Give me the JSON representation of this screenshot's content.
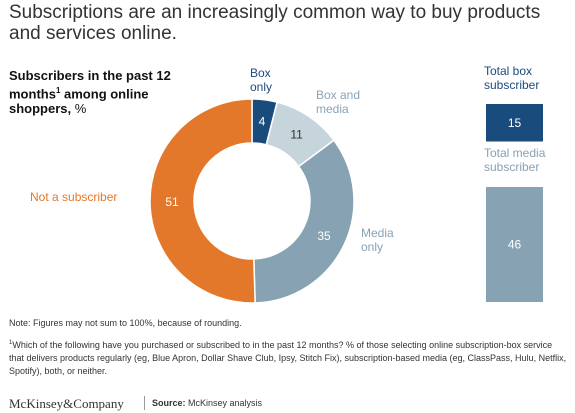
{
  "title": "Subscriptions are an increasingly common way to buy products and services online.",
  "subtitle": {
    "main": "Subscribers in the past 12 months",
    "sup": "1",
    "rest": " among online shoppers,",
    "unit": " %"
  },
  "chart_data": [
    {
      "type": "pie",
      "variant": "donut",
      "slices": [
        {
          "label_lines": [
            "Box",
            "only"
          ],
          "value": 4,
          "color": "#1a4b7d",
          "label_color": "#1a4b7d"
        },
        {
          "label_lines": [
            "Box and",
            "media"
          ],
          "value": 11,
          "color": "#c6d4dc",
          "label_color": "#8aa3b5"
        },
        {
          "label_lines": [
            "Media",
            "only"
          ],
          "value": 35,
          "color": "#87a2b3",
          "label_color": "#87a2b3"
        },
        {
          "label_lines": [
            "Not a subscriber"
          ],
          "value": 51,
          "color": "#e4782a",
          "label_color": "#e4782a"
        }
      ]
    },
    {
      "type": "bar",
      "orientation": "vertical",
      "series": [
        {
          "label_lines": [
            "Total box",
            "subscriber"
          ],
          "value": 15,
          "color": "#1a4b7d",
          "label_color": "#1a4b7d"
        },
        {
          "label_lines": [
            "Total media",
            "subscriber"
          ],
          "value": 46,
          "color": "#87a2b3",
          "label_color": "#87a2b3"
        }
      ]
    }
  ],
  "note": "Note: Figures may not sum to 100%, because of rounding.",
  "footnote": {
    "sup": "1",
    "text": "Which of the following have you purchased or subscribed to in the past 12 months? % of those selecting online subscription-box service that delivers products regularly (eg, Blue Apron, Dollar Shave Club, Ipsy, Stitch Fix), subscription-based media (eg, ClassPass, Hulu, Netflix, Spotify), both, or neither."
  },
  "brand": "McKinsey&Company",
  "source": {
    "label": "Source:",
    "text": " McKinsey analysis"
  }
}
